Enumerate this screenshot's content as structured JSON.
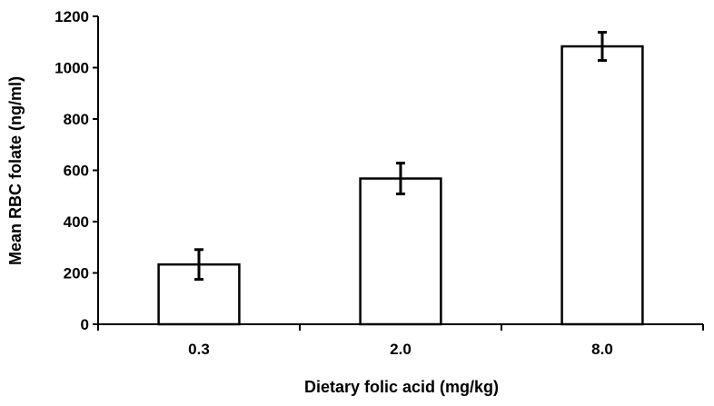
{
  "chart_data": {
    "type": "bar",
    "title": "",
    "xlabel": "Dietary folic acid (mg/kg)",
    "ylabel": "Mean RBC folate (ng/ml)",
    "categories": [
      "0.3",
      "2.0",
      "8.0"
    ],
    "values": [
      233,
      568,
      1083
    ],
    "errors": [
      58,
      60,
      55
    ],
    "ylim": [
      0,
      1200
    ],
    "yticks": [
      0,
      200,
      400,
      600,
      800,
      1000,
      1200
    ],
    "grid": false,
    "legend": "none",
    "bar_fill": "#ffffff",
    "bar_stroke": "#000000"
  }
}
